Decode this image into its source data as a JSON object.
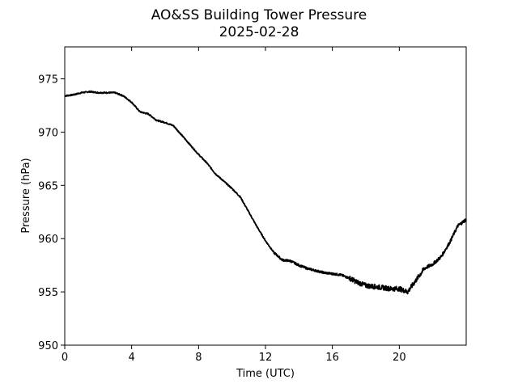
{
  "chart_data": {
    "type": "line",
    "title": "AO&SS Building Tower Pressure",
    "subtitle": "2025-02-28",
    "xlabel": "Time (UTC)",
    "ylabel": "Pressure (hPa)",
    "xlim": [
      0,
      24
    ],
    "ylim": [
      950,
      978
    ],
    "xticks": [
      0,
      4,
      8,
      12,
      16,
      20
    ],
    "xtick_labels": [
      "0",
      "4",
      "8",
      "12",
      "16",
      "20"
    ],
    "yticks": [
      950,
      955,
      960,
      965,
      970,
      975
    ],
    "ytick_labels": [
      "950",
      "955",
      "960",
      "965",
      "970",
      "975"
    ],
    "grid": false,
    "line_color": "#000000",
    "series": [
      {
        "x": [
          0,
          0.5,
          1,
          1.5,
          2,
          2.5,
          3,
          3.5,
          4,
          4.5,
          5,
          5.5,
          6,
          6.5,
          7,
          7.5,
          8,
          8.5,
          9,
          9.5,
          10,
          10.5,
          11,
          11.5,
          12,
          12.5,
          13,
          13.5,
          14,
          14.5,
          15,
          15.5,
          16,
          16.5,
          17,
          17.5,
          18,
          18.5,
          19,
          19.5,
          20,
          20.5,
          21,
          21.5,
          22,
          22.5,
          23,
          23.5,
          24
        ],
        "y": [
          973.4,
          973.5,
          973.7,
          973.8,
          973.7,
          973.7,
          973.7,
          973.4,
          972.8,
          971.9,
          971.7,
          971.1,
          970.9,
          970.6,
          969.7,
          968.8,
          967.9,
          967.1,
          966.1,
          965.4,
          964.7,
          963.9,
          962.5,
          961.1,
          959.8,
          958.7,
          958.0,
          957.9,
          957.5,
          957.2,
          957.0,
          956.8,
          956.7,
          956.6,
          956.3,
          955.9,
          955.6,
          955.5,
          955.4,
          955.3,
          955.3,
          955.0,
          956.1,
          957.2,
          957.6,
          958.3,
          959.6,
          961.2,
          961.8
        ]
      }
    ]
  }
}
